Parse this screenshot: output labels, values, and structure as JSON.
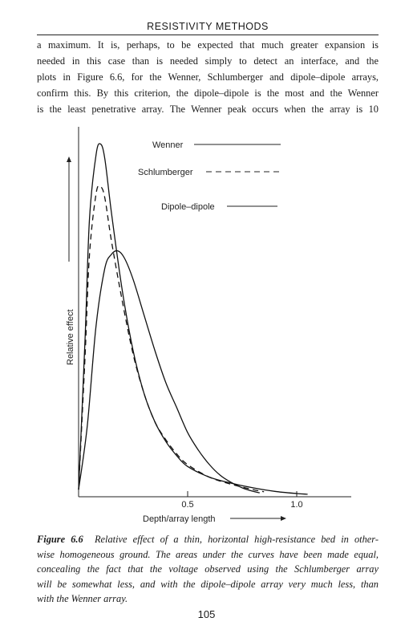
{
  "running_head": "RESISTIVITY METHODS",
  "body_lines": [
    "a maximum. It is, perhaps, to be expected that much greater expansion is",
    "needed in this case than is needed simply to detect an interface, and the",
    "plots in Figure 6.6, for the Wenner, Schlumberger and dipole–dipole arrays,",
    "confirm this. By this criterion, the dipole–dipole is the most and the Wenner",
    "is the least penetrative array. The Wenner peak occurs when the array is 10"
  ],
  "caption": {
    "label": "Figure 6.6",
    "lines": [
      "Relative effect of a thin, horizontal high-resistance bed in other-",
      "wise homogeneous ground. The areas under the curves have been made equal,",
      "concealing the fact that the voltage observed using the Schlumberger array",
      "will be somewhat less, and with the dipole–dipole array very much less, than",
      "with the Wenner array."
    ]
  },
  "page_number": "105",
  "chart_data": {
    "type": "line",
    "xlabel": "Depth/array length",
    "ylabel": "Relative effect",
    "x_ticks": [
      "0.5",
      "1.0"
    ],
    "xlim": [
      0,
      1.25
    ],
    "ylim": [
      0,
      1
    ],
    "y_tick_labels": false,
    "grid": false,
    "legend": "top-right",
    "series": [
      {
        "name": "Wenner",
        "style": "solid",
        "points": [
          [
            0.0,
            0.02
          ],
          [
            0.03,
            0.45
          ],
          [
            0.05,
            0.78
          ],
          [
            0.08,
            0.96
          ],
          [
            0.1,
            0.99
          ],
          [
            0.12,
            0.95
          ],
          [
            0.15,
            0.8
          ],
          [
            0.2,
            0.58
          ],
          [
            0.25,
            0.41
          ],
          [
            0.3,
            0.29
          ],
          [
            0.35,
            0.21
          ],
          [
            0.4,
            0.155
          ],
          [
            0.45,
            0.115
          ],
          [
            0.5,
            0.085
          ],
          [
            0.6,
            0.055
          ],
          [
            0.7,
            0.038
          ],
          [
            0.8,
            0.025
          ],
          [
            0.9,
            0.015
          ],
          [
            1.0,
            0.009
          ],
          [
            1.05,
            0.007
          ]
        ]
      },
      {
        "name": "Schlumberger",
        "style": "dashed",
        "points": [
          [
            0.0,
            0.02
          ],
          [
            0.03,
            0.4
          ],
          [
            0.05,
            0.68
          ],
          [
            0.08,
            0.85
          ],
          [
            0.1,
            0.87
          ],
          [
            0.12,
            0.84
          ],
          [
            0.15,
            0.72
          ],
          [
            0.2,
            0.55
          ],
          [
            0.25,
            0.4
          ],
          [
            0.3,
            0.29
          ],
          [
            0.35,
            0.21
          ],
          [
            0.4,
            0.16
          ],
          [
            0.45,
            0.12
          ],
          [
            0.5,
            0.09
          ],
          [
            0.6,
            0.055
          ],
          [
            0.7,
            0.035
          ],
          [
            0.8,
            0.02
          ],
          [
            0.85,
            0.014
          ]
        ]
      },
      {
        "name": "Dipole–dipole",
        "style": "solid",
        "points": [
          [
            0.0,
            0.02
          ],
          [
            0.04,
            0.2
          ],
          [
            0.08,
            0.48
          ],
          [
            0.12,
            0.64
          ],
          [
            0.15,
            0.68
          ],
          [
            0.18,
            0.69
          ],
          [
            0.21,
            0.67
          ],
          [
            0.25,
            0.61
          ],
          [
            0.3,
            0.51
          ],
          [
            0.35,
            0.41
          ],
          [
            0.4,
            0.32
          ],
          [
            0.45,
            0.25
          ],
          [
            0.5,
            0.18
          ],
          [
            0.55,
            0.13
          ],
          [
            0.6,
            0.09
          ],
          [
            0.65,
            0.06
          ],
          [
            0.7,
            0.04
          ],
          [
            0.75,
            0.025
          ],
          [
            0.8,
            0.015
          ],
          [
            0.83,
            0.011
          ]
        ]
      }
    ]
  }
}
